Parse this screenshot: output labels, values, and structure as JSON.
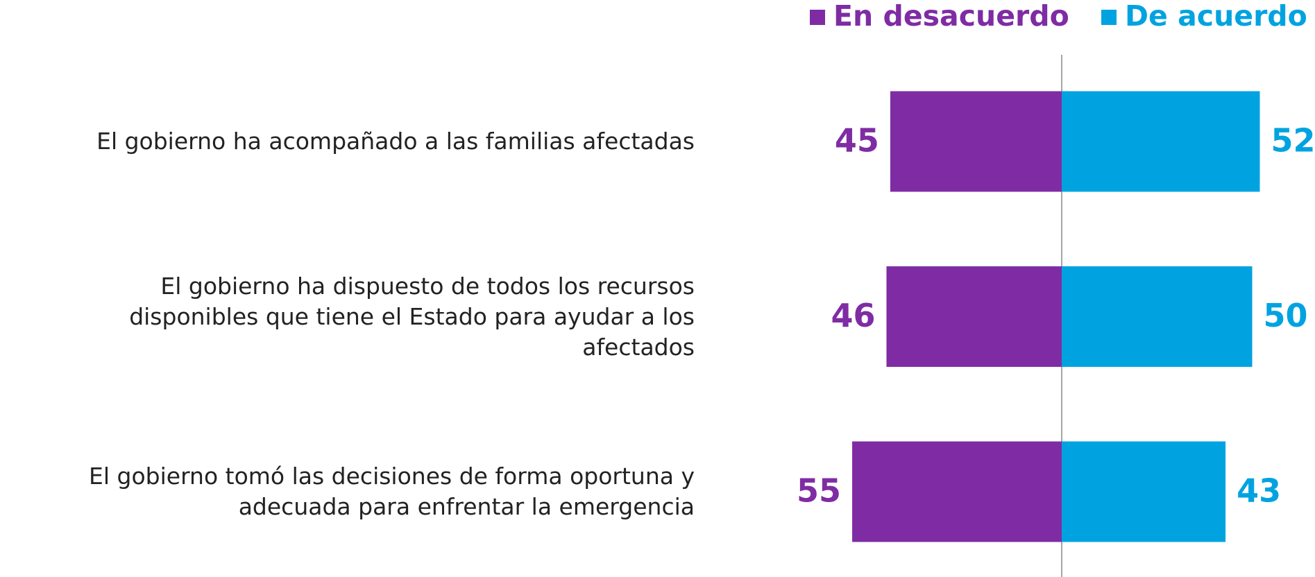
{
  "chart_data": {
    "type": "diverging_bar",
    "categories": [
      "El gobierno ha acompañado a las familias afectadas",
      "El gobierno ha dispuesto de todos los recursos\ndisponibles que tiene el Estado para ayudar a los\nafectados",
      "El gobierno tomó las decisiones de forma oportuna y\nadecuada para enfrentar la emergencia"
    ],
    "series": [
      {
        "name": "En desacuerdo",
        "color": "#7f2ca4",
        "values": [
          45,
          46,
          55
        ]
      },
      {
        "name": "De acuerdo",
        "color": "#00a3e0",
        "values": [
          52,
          50,
          43
        ]
      }
    ]
  }
}
